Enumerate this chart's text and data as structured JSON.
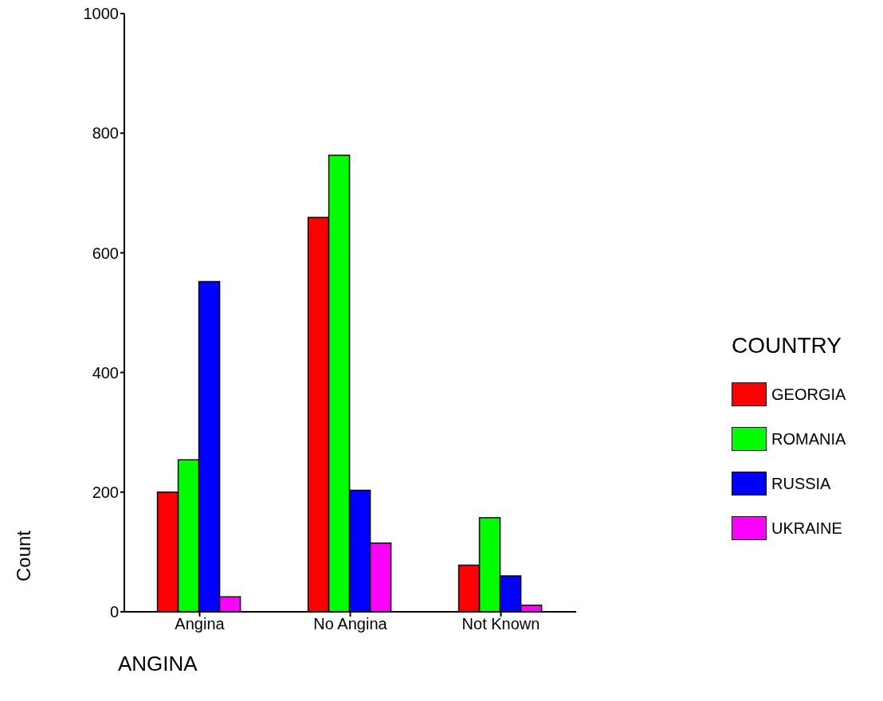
{
  "chart_data": {
    "type": "bar",
    "xlabel": "ANGINA",
    "ylabel": "Count",
    "legend_title": "COUNTRY",
    "categories": [
      "Angina",
      "No Angina",
      "Not Known"
    ],
    "series": [
      {
        "name": "GEORGIA",
        "color": "#ff0000",
        "values": [
          200,
          659,
          78
        ]
      },
      {
        "name": "ROMANIA",
        "color": "#00ff00",
        "values": [
          254,
          763,
          157
        ]
      },
      {
        "name": "RUSSIA",
        "color": "#0000ff",
        "values": [
          552,
          203,
          60
        ]
      },
      {
        "name": "UKRAINE",
        "color": "#ff00ff",
        "values": [
          25,
          115,
          11
        ]
      }
    ],
    "ylim": [
      0,
      1000
    ],
    "yticks": [
      0,
      200,
      400,
      600,
      800,
      1000
    ],
    "grid": false,
    "legend": "right"
  }
}
